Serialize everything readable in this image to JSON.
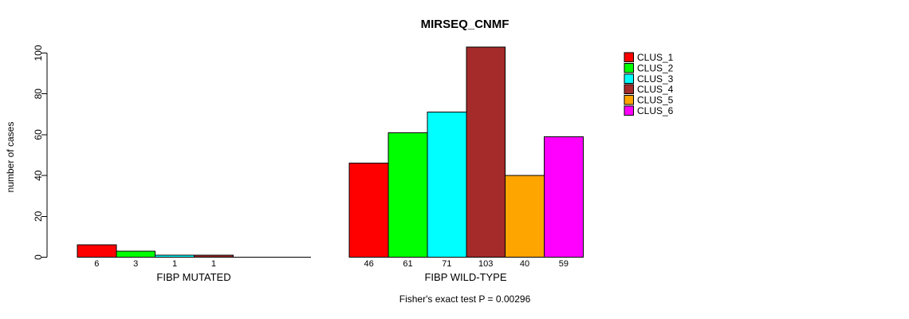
{
  "chart_data": {
    "type": "bar",
    "title": "MIRSEQ_CNMF",
    "ylabel": "number of cases",
    "xlabel": "",
    "ylim": [
      0,
      100
    ],
    "yticks": [
      0,
      20,
      40,
      60,
      80,
      100
    ],
    "grid": false,
    "legend_position": "right",
    "groups": [
      {
        "label": "FIBP MUTATED",
        "values": [
          6,
          3,
          1,
          1,
          0,
          0
        ],
        "bar_labels": [
          "6",
          "3",
          "1",
          "1",
          "",
          ""
        ]
      },
      {
        "label": "FIBP WILD-TYPE",
        "values": [
          46,
          61,
          71,
          103,
          40,
          59
        ],
        "bar_labels": [
          "46",
          "61",
          "71",
          "103",
          "40",
          "59"
        ]
      }
    ],
    "series_colors": [
      "#ff0000",
      "#00ff00",
      "#00ffff",
      "#a52a2a",
      "#ffa500",
      "#ff00ff"
    ],
    "legend": [
      {
        "label": "CLUS_1",
        "color": "#ff0000"
      },
      {
        "label": "CLUS_2",
        "color": "#00ff00"
      },
      {
        "label": "CLUS_3",
        "color": "#00ffff"
      },
      {
        "label": "CLUS_4",
        "color": "#a52a2a"
      },
      {
        "label": "CLUS_5",
        "color": "#ffa500"
      },
      {
        "label": "CLUS_6",
        "color": "#ff00ff"
      }
    ],
    "footnote": "Fisher's exact test P = 0.00296",
    "axis_color": "#000000",
    "bar_border_color": "#000000"
  }
}
